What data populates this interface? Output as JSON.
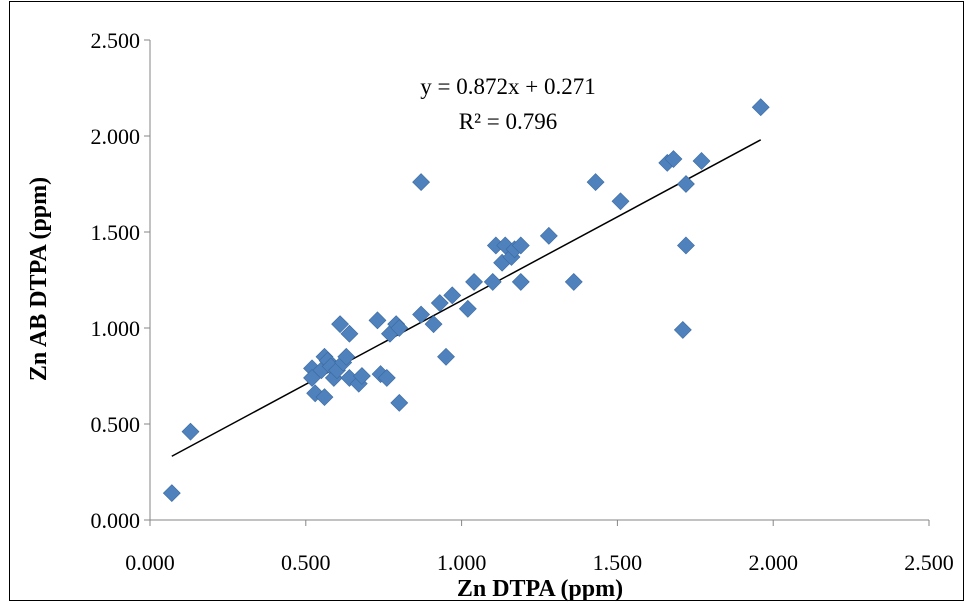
{
  "chart_data": {
    "type": "scatter",
    "title": "",
    "xlabel": "Zn DTPA (ppm)",
    "ylabel": "Zn AB DTPA (ppm)",
    "xlim": [
      0,
      2.5
    ],
    "ylim": [
      0,
      2.5
    ],
    "x_ticks": [
      "0.000",
      "0.500",
      "1.000",
      "1.500",
      "2.000",
      "2.500"
    ],
    "y_ticks": [
      "0.000",
      "0.500",
      "1.000",
      "1.500",
      "2.000",
      "2.500"
    ],
    "grid": false,
    "legend": "none",
    "marker_color": "#4f81bd",
    "trendline": {
      "slope": 0.872,
      "intercept": 0.271,
      "x_range": [
        0.07,
        1.96
      ],
      "equation": "y = 0.872x + 0.271",
      "r_squared": "R² = 0.796"
    },
    "points": [
      [
        0.07,
        0.14
      ],
      [
        0.13,
        0.46
      ],
      [
        0.52,
        0.79
      ],
      [
        0.52,
        0.74
      ],
      [
        0.53,
        0.66
      ],
      [
        0.55,
        0.78
      ],
      [
        0.56,
        0.64
      ],
      [
        0.56,
        0.85
      ],
      [
        0.57,
        0.83
      ],
      [
        0.58,
        0.8
      ],
      [
        0.59,
        0.74
      ],
      [
        0.6,
        0.78
      ],
      [
        0.61,
        1.02
      ],
      [
        0.62,
        0.82
      ],
      [
        0.63,
        0.85
      ],
      [
        0.64,
        0.74
      ],
      [
        0.64,
        0.97
      ],
      [
        0.67,
        0.71
      ],
      [
        0.68,
        0.75
      ],
      [
        0.73,
        1.04
      ],
      [
        0.74,
        0.76
      ],
      [
        0.76,
        0.74
      ],
      [
        0.77,
        0.97
      ],
      [
        0.79,
        1.02
      ],
      [
        0.8,
        0.61
      ],
      [
        0.8,
        1.0
      ],
      [
        0.87,
        1.76
      ],
      [
        0.87,
        1.07
      ],
      [
        0.91,
        1.02
      ],
      [
        0.93,
        1.13
      ],
      [
        0.95,
        0.85
      ],
      [
        0.97,
        1.17
      ],
      [
        1.02,
        1.1
      ],
      [
        1.04,
        1.24
      ],
      [
        1.1,
        1.24
      ],
      [
        1.11,
        1.43
      ],
      [
        1.13,
        1.34
      ],
      [
        1.14,
        1.43
      ],
      [
        1.16,
        1.37
      ],
      [
        1.17,
        1.41
      ],
      [
        1.19,
        1.43
      ],
      [
        1.19,
        1.24
      ],
      [
        1.28,
        1.48
      ],
      [
        1.36,
        1.24
      ],
      [
        1.43,
        1.76
      ],
      [
        1.51,
        1.66
      ],
      [
        1.66,
        1.86
      ],
      [
        1.68,
        1.88
      ],
      [
        1.71,
        0.99
      ],
      [
        1.72,
        1.75
      ],
      [
        1.72,
        1.43
      ],
      [
        1.77,
        1.87
      ],
      [
        1.96,
        2.15
      ]
    ]
  }
}
